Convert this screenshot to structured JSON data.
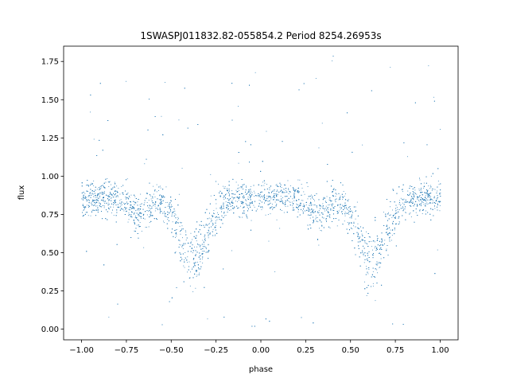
{
  "chart_data": {
    "type": "scatter",
    "title": "1SWASPJ011832.82-055854.2 Period 8254.26953s",
    "xlabel": "phase",
    "ylabel": "flux",
    "xlim": [
      -1.1,
      1.1
    ],
    "ylim": [
      -0.07,
      1.85
    ],
    "xticks": [
      -1.0,
      -0.75,
      -0.5,
      -0.25,
      0.0,
      0.25,
      0.5,
      0.75,
      1.0
    ],
    "xtick_labels": [
      "−1.00",
      "−0.75",
      "−0.50",
      "−0.25",
      "0.00",
      "0.25",
      "0.50",
      "0.75",
      "1.00"
    ],
    "yticks": [
      0.0,
      0.25,
      0.5,
      0.75,
      1.0,
      1.25,
      1.5,
      1.75
    ],
    "ytick_labels": [
      "0.00",
      "0.25",
      "0.50",
      "0.75",
      "1.00",
      "1.25",
      "1.50",
      "1.75"
    ],
    "grid": false,
    "legend": "none",
    "point_color": "#1f77b4",
    "series": [
      {
        "phase_range": [
          -1.0,
          1.0
        ],
        "baseline_flux": 0.86,
        "flux_scatter": 0.1,
        "eclipses": [
          {
            "center_phase": -0.38,
            "min_flux": 0.45
          },
          {
            "center_phase": 0.62,
            "min_flux": 0.45
          }
        ],
        "secondary_dips": [
          {
            "center_phase": -0.68,
            "min_flux": 0.75
          },
          {
            "center_phase": 0.32,
            "min_flux": 0.75
          }
        ]
      }
    ]
  }
}
